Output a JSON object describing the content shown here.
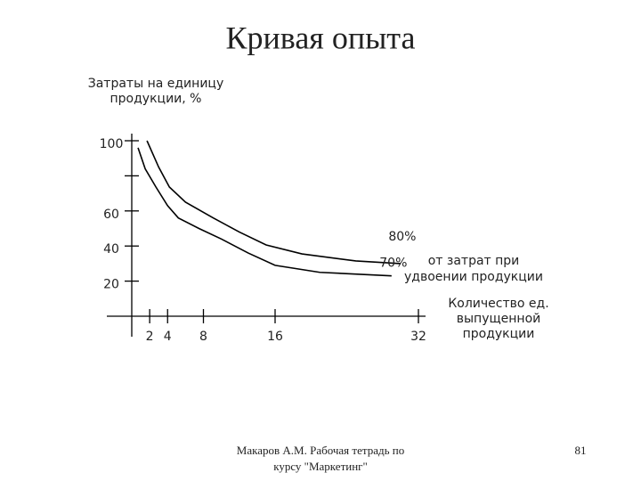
{
  "chart_data": {
    "type": "line",
    "title": "Кривая опыта",
    "y_axis_label": [
      "Затраты на единицу",
      "продукции, %"
    ],
    "x_axis_label": [
      "Количество ед.",
      "выпущенной",
      "продукции"
    ],
    "annotation": [
      "от затрат при",
      "удвоении продукции"
    ],
    "xlim": [
      0,
      32
    ],
    "ylim": [
      0,
      100
    ],
    "xticks": [
      2,
      4,
      8,
      16,
      32
    ],
    "yticks": [
      20,
      40,
      60,
      100
    ],
    "yticks_unlabeled": [
      80
    ],
    "series": [
      {
        "name": "80%",
        "color": "#000000",
        "x": [
          1.7,
          3,
          4.2,
          6,
          9.1,
          12,
          15,
          19,
          25,
          30
        ],
        "values": [
          100,
          85,
          73.6,
          65,
          56,
          48,
          40.6,
          35.5,
          31.5,
          30
        ]
      },
      {
        "name": "70%",
        "color": "#000000",
        "x": [
          0.7,
          1.5,
          2.7,
          4,
          5.2,
          7.5,
          10,
          13,
          16,
          21,
          29
        ],
        "values": [
          96,
          84,
          73.6,
          63,
          56,
          50,
          44,
          36,
          29,
          25,
          23
        ]
      }
    ],
    "footer": [
      "Макаров А.М. Рабочая тетрадь по",
      "курсу \"Маркетинг\""
    ],
    "page_number": "81"
  }
}
